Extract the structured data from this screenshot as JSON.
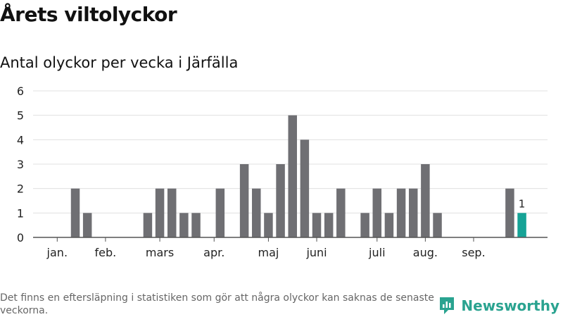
{
  "title": "Årets viltolyckor",
  "subtitle": "Antal olyckor per vecka i Järfälla",
  "footnote": "Det finns en eftersläpning i statistiken som gör att några olyckor kan saknas de senaste veckorna.",
  "brand": {
    "name": "Newsworthy",
    "icon": "newsworthy-logo-icon",
    "color": "#2aa390"
  },
  "chart_data": {
    "type": "bar",
    "ylim": [
      0,
      6
    ],
    "yticks": [
      0,
      1,
      2,
      3,
      4,
      5,
      6
    ],
    "grid": true,
    "weeks": [
      1,
      2,
      3,
      4,
      5,
      6,
      7,
      8,
      9,
      10,
      11,
      12,
      13,
      14,
      15,
      16,
      17,
      18,
      19,
      20,
      21,
      22,
      23,
      24,
      25,
      26,
      27,
      28,
      29,
      30,
      31,
      32,
      33,
      34,
      35,
      36,
      37,
      38,
      39,
      40,
      41,
      42
    ],
    "values": [
      0,
      0,
      0,
      2,
      1,
      0,
      0,
      0,
      0,
      1,
      2,
      2,
      1,
      1,
      0,
      2,
      0,
      3,
      2,
      1,
      3,
      5,
      4,
      1,
      1,
      2,
      0,
      1,
      2,
      1,
      2,
      2,
      3,
      1,
      0,
      0,
      0,
      0,
      0,
      2,
      1,
      null
    ],
    "highlight_week": 41,
    "highlight_label": "1",
    "month_labels": [
      "jan.",
      "feb.",
      "mars",
      "apr.",
      "maj",
      "juni",
      "juli",
      "aug.",
      "sep."
    ],
    "month_label_weeks": [
      2.5,
      6.5,
      11,
      15.5,
      20,
      24,
      29,
      33,
      37
    ],
    "colors": {
      "bar": "#6f6f73",
      "highlight": "#16a396",
      "grid": "#e0e0e0",
      "axis": "#555555"
    }
  }
}
